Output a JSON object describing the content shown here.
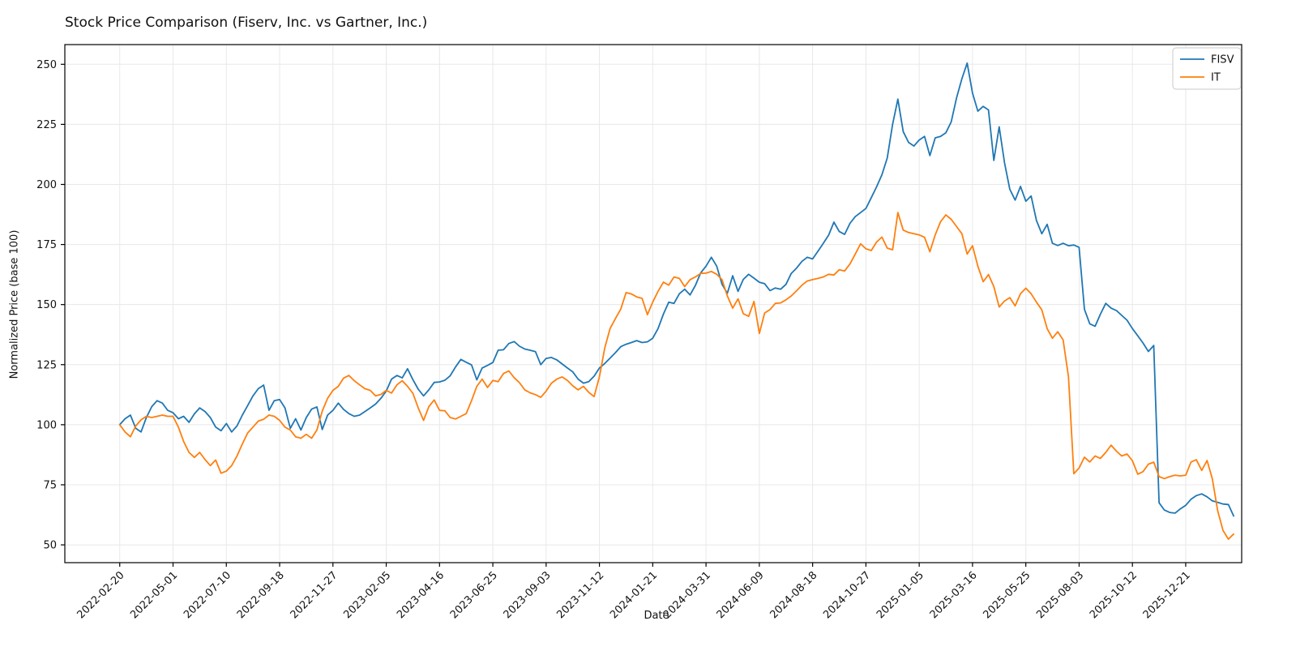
{
  "window": {
    "title": "Stock Price Comparison (Fiserv, Inc. vs Gartner, Inc.)"
  },
  "chart_data": {
    "type": "line",
    "title": "Stock Price Comparison (Fiserv, Inc. vs Gartner, Inc.)",
    "xlabel": "Date",
    "ylabel": "Normalized Price (base 100)",
    "grid": true,
    "legend_position": "upper right",
    "x_unit": "weeks since first sample, weekly data",
    "x_tick_weeks": [
      0,
      10,
      20,
      30,
      40,
      50,
      60,
      70,
      80,
      90,
      100,
      110,
      120,
      130,
      140,
      150,
      160,
      170,
      180,
      190,
      200
    ],
    "x_tick_labels": [
      "2022-02-20",
      "2022-05-01",
      "2022-07-10",
      "2022-09-18",
      "2022-11-27",
      "2023-02-05",
      "2023-04-16",
      "2023-06-25",
      "2023-09-03",
      "2023-11-12",
      "2024-01-21",
      "2024-03-31",
      "2024-06-09",
      "2024-08-18",
      "2024-10-27",
      "2025-01-05",
      "2025-03-16",
      "2025-05-25",
      "2025-08-03",
      "2025-10-12",
      "2025-12-21"
    ],
    "y_ticks": [
      50,
      75,
      100,
      125,
      150,
      175,
      200,
      225,
      250
    ],
    "xlim_weeks": [
      -10.3,
      210.5
    ],
    "ylim": [
      42.6,
      258.2
    ],
    "series": [
      {
        "name": "FISV",
        "color": "#1f77b4",
        "values": [
          100,
          102.5,
          104,
          98.5,
          97,
          103,
          107.5,
          110,
          109,
          106,
          105,
          102.5,
          103.5,
          101,
          104.5,
          107,
          105.5,
          103,
          99,
          97.5,
          100.5,
          97,
          99.5,
          104,
          108,
          112,
          115,
          116.5,
          106,
          110,
          110.5,
          107,
          98.5,
          102.5,
          97.8,
          103,
          106.5,
          107.4,
          98,
          104,
          106,
          109,
          106.4,
          104.6,
          103.5,
          104,
          105.5,
          107,
          108.6,
          111,
          114,
          119,
          120.5,
          119.5,
          123.3,
          118.8,
          114.8,
          112,
          114.5,
          117.6,
          117.8,
          118.5,
          120.4,
          124,
          127.2,
          126,
          124.9,
          118.7,
          123.6,
          124.7,
          125.9,
          131,
          131.2,
          133.8,
          134.6,
          132.7,
          131.5,
          131,
          130.4,
          125,
          127.6,
          128,
          127,
          125.3,
          123.6,
          122,
          119,
          117.3,
          117.9,
          120.2,
          123.6,
          125.5,
          127.7,
          130,
          132.5,
          133.5,
          134.2,
          135,
          134.2,
          134.5,
          136,
          140,
          146,
          151,
          150.5,
          154.5,
          156.4,
          154,
          158,
          163.2,
          166,
          169.7,
          166,
          158.5,
          154.7,
          162,
          155.5,
          160.5,
          162.6,
          161,
          159.3,
          158.7,
          155.8,
          156.9,
          156.4,
          158.4,
          163,
          165.2,
          168,
          169.7,
          169,
          172.2,
          175.5,
          178.9,
          184.3,
          180.4,
          179.2,
          183.8,
          186.6,
          188.3,
          190,
          194.5,
          199,
          204,
          211,
          225,
          235.5,
          222,
          217.5,
          216,
          218.5,
          220,
          212,
          219.4,
          220,
          221.5,
          226,
          236,
          244,
          250.5,
          238,
          230.5,
          232.5,
          231,
          210,
          224,
          209,
          198,
          193.5,
          199.2,
          193,
          195.2,
          185,
          179.5,
          183.4,
          175.5,
          174.6,
          175.5,
          174.5,
          174.8,
          173.8,
          148,
          142,
          141,
          146,
          150.5,
          148.5,
          147.5,
          145.5,
          143.5,
          140,
          137,
          134,
          130.5,
          133,
          67.5,
          64.5,
          63.5,
          63.2,
          65,
          66.5,
          69,
          70.5,
          71.2,
          70,
          68.3,
          67.7,
          67,
          66.8,
          62
        ]
      },
      {
        "name": "IT",
        "color": "#ff7f0e",
        "values": [
          100,
          97,
          95,
          99.5,
          102,
          103.5,
          103,
          103.5,
          104,
          103.5,
          103.5,
          99,
          93,
          88.5,
          86.4,
          88.5,
          85.5,
          83,
          85.3,
          79.8,
          80.7,
          83,
          87,
          92,
          96.6,
          99,
          101.5,
          102.3,
          104,
          103.5,
          101.8,
          99,
          97.8,
          95,
          94.4,
          96,
          94.4,
          97.8,
          105.7,
          111,
          114.3,
          116,
          119.4,
          120.5,
          118.3,
          116.6,
          115,
          114.3,
          112,
          112.6,
          114.3,
          113.2,
          116.6,
          118.3,
          116,
          113.1,
          107,
          101.8,
          107.5,
          110.3,
          106,
          105.8,
          103,
          102.4,
          103.5,
          104.6,
          110,
          116,
          119,
          115.5,
          118.4,
          117.9,
          121.3,
          122.4,
          119.6,
          117.5,
          114.5,
          113.3,
          112.5,
          111.4,
          114,
          117.3,
          119,
          119.9,
          118.4,
          116.2,
          114.5,
          116,
          113.5,
          111.7,
          120,
          132,
          140,
          144.2,
          148.1,
          155,
          154.4,
          153.2,
          152.6,
          145.8,
          151,
          155.5,
          159.3,
          158.1,
          161.5,
          160.9,
          157.5,
          160.4,
          161.5,
          163,
          163.1,
          163.8,
          162.6,
          160.4,
          153.6,
          148.5,
          152.4,
          146.2,
          145.1,
          151.3,
          138,
          146.5,
          147.9,
          150.5,
          150.7,
          152,
          153.6,
          155.8,
          158.1,
          159.8,
          160.4,
          160.9,
          161.5,
          162.6,
          162.3,
          164.5,
          164,
          166.9,
          171,
          175.3,
          173.2,
          172.5,
          176,
          178.1,
          173.5,
          172.8,
          188.3,
          181,
          180,
          179.5,
          179,
          178,
          172,
          179,
          184.5,
          187.3,
          185.5,
          182.5,
          179.5,
          171,
          174.5,
          166,
          159.5,
          162.5,
          157.5,
          149,
          151.5,
          152.9,
          149.5,
          154.5,
          156.8,
          154.5,
          151,
          147.8,
          140,
          136,
          138.7,
          135.3,
          120,
          79.6,
          82,
          86.5,
          84.5,
          87,
          86,
          88.5,
          91.5,
          89,
          87,
          87.8,
          85,
          79.4,
          80.5,
          83.6,
          84.4,
          78.4,
          77.6,
          78.4,
          79,
          78.7,
          79,
          84.5,
          85.4,
          81,
          85.1,
          77.5,
          64.2,
          56,
          52.4,
          54.5
        ]
      }
    ]
  }
}
